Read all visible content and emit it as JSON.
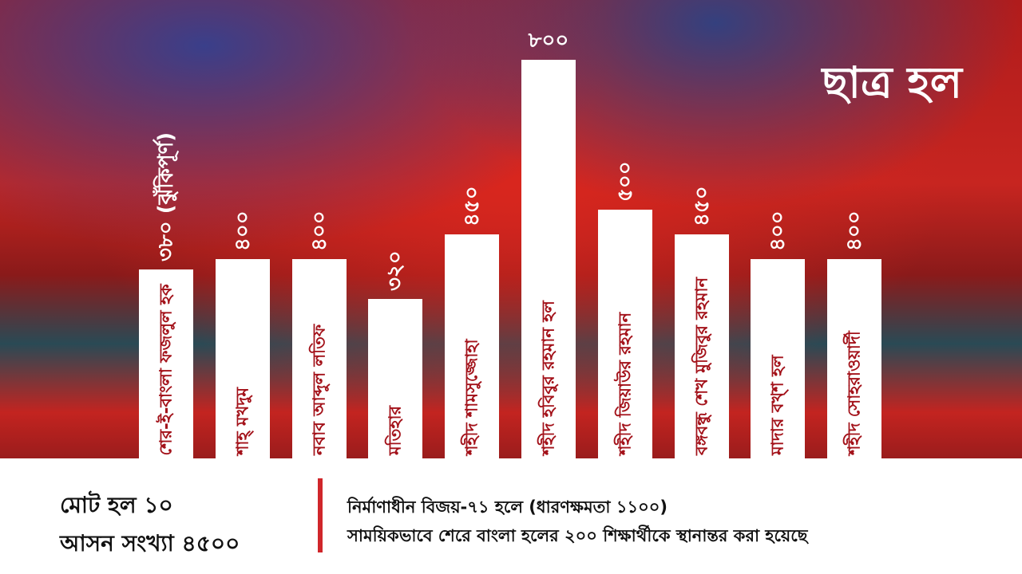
{
  "chart_data": {
    "type": "bar",
    "title": "ছাত্র হল",
    "categories": [
      "শের-ই-বাংলা ফজলুল হক",
      "শাহ্ মখদুম",
      "নবাব আব্দুল লতিফ",
      "মতিহার",
      "শহীদ শামসুজ্জোহা",
      "শহীদ হবিবুর রহমান হল",
      "শহীদ জিয়াউর রহমান",
      "বঙ্গবন্ধু শেখ মুজিবুর রহমান",
      "মাদার বখ্শ হল",
      "শহীদ সোহরাওয়ার্দী"
    ],
    "values": [
      380,
      400,
      400,
      320,
      450,
      800,
      500,
      450,
      400,
      400
    ],
    "value_labels": [
      "৩৮০ (ঝুঁকিপূর্ণ)",
      "৪০০",
      "৪০০",
      "৩২০",
      "৪৫০",
      "৮০০",
      "৫০০",
      "৪৫০",
      "৪০০",
      "৪০০"
    ],
    "color": "#ffffff"
  },
  "footer": {
    "total_halls": "মোট হল ১০",
    "total_seats": "আসন সংখ্যা ৪৫০০",
    "note": [
      "নির্মাণাধীন বিজয়-৭১ হলে (ধারণক্ষমতা ১১০০)",
      "সাময়িকভাবে শেরে বাংলা হলের ২০০ শিক্ষার্থীকে স্থানান্তর করা হয়েছে"
    ]
  }
}
